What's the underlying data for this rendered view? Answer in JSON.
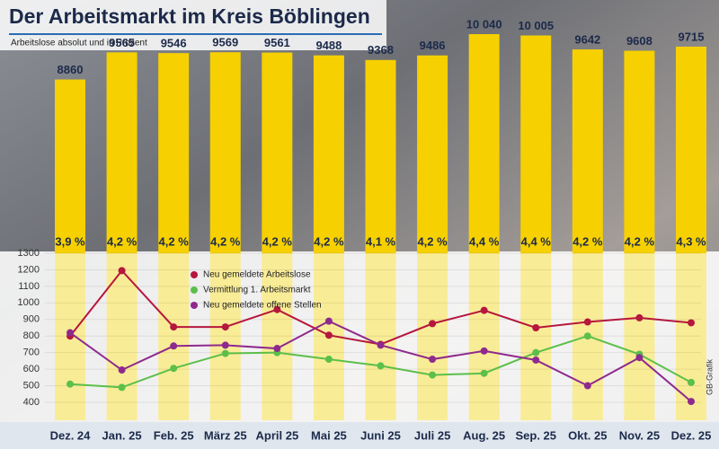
{
  "chart_data": [
    {
      "type": "bar",
      "title": "Der Arbeitsmarkt im Kreis Böblingen",
      "subtitle": "Arbeitslose absolut und in Prozent",
      "categories": [
        "Dez. 24",
        "Jan. 25",
        "Feb. 25",
        "März 25",
        "April 25",
        "Mai 25",
        "Juni 25",
        "Juli 25",
        "Aug. 25",
        "Sep. 25",
        "Okt. 25",
        "Nov. 25",
        "Dez. 25"
      ],
      "values": [
        8860,
        9565,
        9546,
        9569,
        9561,
        9488,
        9368,
        9486,
        10040,
        10005,
        9642,
        9608,
        9715
      ],
      "value_labels": [
        "8860",
        "9565",
        "9546",
        "9569",
        "9561",
        "9488",
        "9368",
        "9486",
        "10 040",
        "10 005",
        "9642",
        "9608",
        "9715"
      ],
      "rate_labels": [
        "3,9 %",
        "4,2 %",
        "4,2 %",
        "4,2 %",
        "4,2 %",
        "4,2 %",
        "4,1 %",
        "4,2 %",
        "4,4 %",
        "4,4 %",
        "4,2 %",
        "4,2 %",
        "4,3 %"
      ],
      "color": "#f6d000"
    },
    {
      "type": "line",
      "ylim": [
        400,
        1300
      ],
      "yticks": [
        400,
        500,
        600,
        700,
        800,
        900,
        1000,
        1100,
        1200,
        1300
      ],
      "grid": true,
      "legend": "upper-left",
      "credit": "GB-Grafik",
      "series": [
        {
          "name": "Neu gemeldete Arbeitslose",
          "color": "#b5173d",
          "values": [
            800,
            1195,
            855,
            855,
            960,
            805,
            750,
            875,
            955,
            850,
            885,
            910,
            880
          ]
        },
        {
          "name": "Vermittlung 1. Arbeitsmarkt",
          "color": "#5cbf4a",
          "values": [
            510,
            490,
            605,
            695,
            700,
            660,
            620,
            565,
            575,
            700,
            800,
            690,
            520
          ]
        },
        {
          "name": "Neu gemeldete offene Stellen",
          "color": "#8e2a8e",
          "values": [
            820,
            595,
            740,
            745,
            725,
            890,
            745,
            660,
            710,
            655,
            500,
            670,
            405
          ]
        }
      ]
    }
  ]
}
